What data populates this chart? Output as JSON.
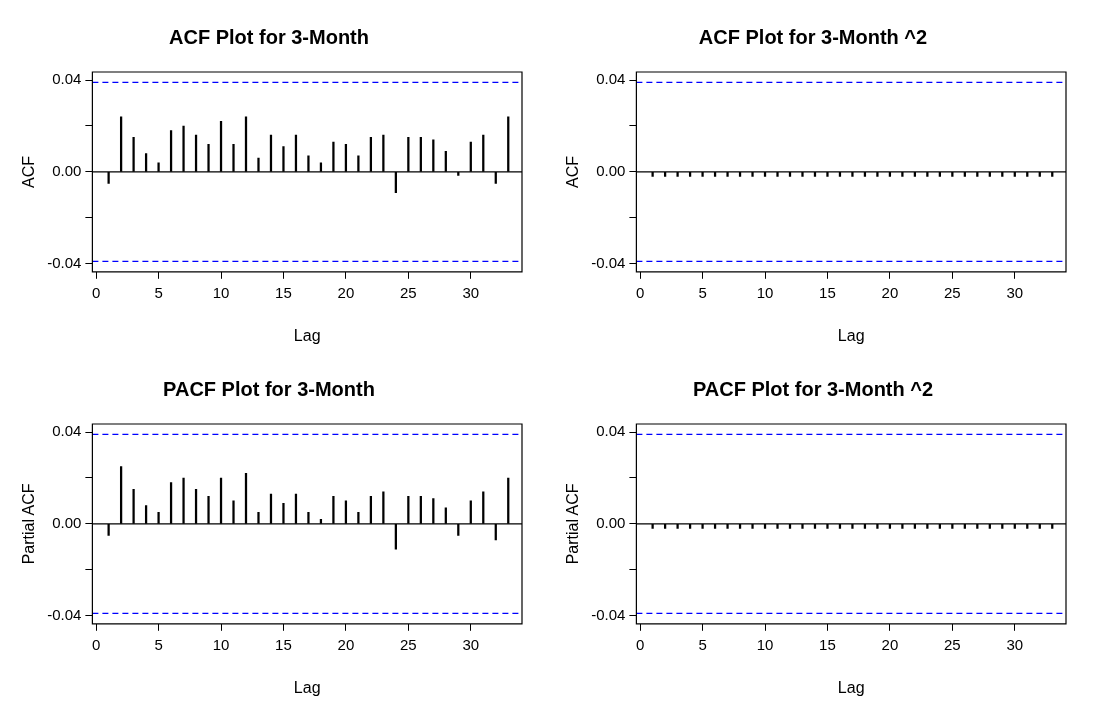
{
  "chart_data": [
    {
      "type": "bar",
      "title": "ACF Plot for 3-Month",
      "xlabel": "Lag",
      "ylabel": "ACF",
      "color": "#000000",
      "x": [
        1,
        2,
        3,
        4,
        5,
        6,
        7,
        8,
        9,
        10,
        11,
        12,
        13,
        14,
        15,
        16,
        17,
        18,
        19,
        20,
        21,
        22,
        23,
        24,
        25,
        26,
        27,
        28,
        29,
        30,
        31,
        32,
        33
      ],
      "values": [
        -0.005,
        0.024,
        0.015,
        0.008,
        0.004,
        0.018,
        0.02,
        0.016,
        0.012,
        0.022,
        0.012,
        0.024,
        0.006,
        0.016,
        0.011,
        0.016,
        0.007,
        0.004,
        0.013,
        0.012,
        0.007,
        0.015,
        0.016,
        -0.009,
        0.015,
        0.015,
        0.014,
        0.009,
        -0.0015,
        0.013,
        0.016,
        -0.005,
        0.024
      ],
      "xlim": [
        -0.3,
        34.1
      ],
      "xticks": [
        0,
        5,
        10,
        15,
        20,
        25,
        30
      ],
      "ylim": [
        -0.0435,
        0.0435
      ],
      "yticks": [
        {
          "value": -0.04,
          "label": "-0.04"
        },
        {
          "value": -0.02,
          "label": null
        },
        {
          "value": 0,
          "label": "0.00"
        },
        {
          "value": 0.02,
          "label": null
        },
        {
          "value": 0.04,
          "label": "0.04"
        }
      ],
      "ref_lines": [
        {
          "axis": "y",
          "value": 0.039,
          "color": "#0000ff",
          "line_style": "dashed"
        },
        {
          "axis": "y",
          "value": -0.039,
          "color": "#0000ff",
          "line_style": "dashed"
        },
        {
          "axis": "y",
          "value": 0,
          "color": "#000000",
          "line_style": "solid"
        }
      ]
    },
    {
      "type": "bar",
      "title": "ACF Plot for 3-Month ^2",
      "xlabel": "Lag",
      "ylabel": "ACF",
      "color": "#000000",
      "x": [
        1,
        2,
        3,
        4,
        5,
        6,
        7,
        8,
        9,
        10,
        11,
        12,
        13,
        14,
        15,
        16,
        17,
        18,
        19,
        20,
        21,
        22,
        23,
        24,
        25,
        26,
        27,
        28,
        29,
        30,
        31,
        32,
        33
      ],
      "values": [
        -0.002,
        -0.002,
        -0.002,
        -0.002,
        -0.002,
        -0.002,
        -0.002,
        -0.002,
        -0.002,
        -0.002,
        -0.002,
        -0.002,
        -0.002,
        -0.002,
        -0.002,
        -0.002,
        -0.002,
        -0.002,
        -0.002,
        -0.002,
        -0.002,
        -0.002,
        -0.002,
        -0.002,
        -0.002,
        -0.002,
        -0.002,
        -0.002,
        -0.002,
        -0.002,
        -0.002,
        -0.002,
        -0.002
      ],
      "xlim": [
        -0.3,
        34.1
      ],
      "xticks": [
        0,
        5,
        10,
        15,
        20,
        25,
        30
      ],
      "ylim": [
        -0.0435,
        0.0435
      ],
      "yticks": [
        {
          "value": -0.04,
          "label": "-0.04"
        },
        {
          "value": -0.02,
          "label": null
        },
        {
          "value": 0,
          "label": "0.00"
        },
        {
          "value": 0.02,
          "label": null
        },
        {
          "value": 0.04,
          "label": "0.04"
        }
      ],
      "ref_lines": [
        {
          "axis": "y",
          "value": 0.039,
          "color": "#0000ff",
          "line_style": "dashed"
        },
        {
          "axis": "y",
          "value": -0.039,
          "color": "#0000ff",
          "line_style": "dashed"
        },
        {
          "axis": "y",
          "value": 0,
          "color": "#000000",
          "line_style": "solid"
        }
      ]
    },
    {
      "type": "bar",
      "title": "PACF Plot for 3-Month",
      "xlabel": "Lag",
      "ylabel": "Partial ACF",
      "color": "#000000",
      "x": [
        1,
        2,
        3,
        4,
        5,
        6,
        7,
        8,
        9,
        10,
        11,
        12,
        13,
        14,
        15,
        16,
        17,
        18,
        19,
        20,
        21,
        22,
        23,
        24,
        25,
        26,
        27,
        28,
        29,
        30,
        31,
        32,
        33
      ],
      "values": [
        -0.005,
        0.025,
        0.015,
        0.008,
        0.005,
        0.018,
        0.02,
        0.015,
        0.012,
        0.02,
        0.01,
        0.022,
        0.005,
        0.013,
        0.009,
        0.013,
        0.005,
        0.002,
        0.012,
        0.01,
        0.005,
        0.012,
        0.014,
        -0.011,
        0.012,
        0.012,
        0.011,
        0.007,
        -0.005,
        0.01,
        0.014,
        -0.007,
        0.02
      ],
      "xlim": [
        -0.3,
        34.1
      ],
      "xticks": [
        0,
        5,
        10,
        15,
        20,
        25,
        30
      ],
      "ylim": [
        -0.0435,
        0.0435
      ],
      "yticks": [
        {
          "value": -0.04,
          "label": "-0.04"
        },
        {
          "value": -0.02,
          "label": null
        },
        {
          "value": 0,
          "label": "0.00"
        },
        {
          "value": 0.02,
          "label": null
        },
        {
          "value": 0.04,
          "label": "0.04"
        }
      ],
      "ref_lines": [
        {
          "axis": "y",
          "value": 0.039,
          "color": "#0000ff",
          "line_style": "dashed"
        },
        {
          "axis": "y",
          "value": -0.039,
          "color": "#0000ff",
          "line_style": "dashed"
        },
        {
          "axis": "y",
          "value": 0,
          "color": "#000000",
          "line_style": "solid"
        }
      ]
    },
    {
      "type": "bar",
      "title": "PACF Plot for 3-Month ^2",
      "xlabel": "Lag",
      "ylabel": "Partial ACF",
      "color": "#000000",
      "x": [
        1,
        2,
        3,
        4,
        5,
        6,
        7,
        8,
        9,
        10,
        11,
        12,
        13,
        14,
        15,
        16,
        17,
        18,
        19,
        20,
        21,
        22,
        23,
        24,
        25,
        26,
        27,
        28,
        29,
        30,
        31,
        32,
        33
      ],
      "values": [
        -0.002,
        -0.002,
        -0.002,
        -0.002,
        -0.002,
        -0.002,
        -0.002,
        -0.002,
        -0.002,
        -0.002,
        -0.002,
        -0.002,
        -0.002,
        -0.002,
        -0.002,
        -0.002,
        -0.002,
        -0.002,
        -0.002,
        -0.002,
        -0.002,
        -0.002,
        -0.002,
        -0.002,
        -0.002,
        -0.002,
        -0.002,
        -0.002,
        -0.002,
        -0.002,
        -0.002,
        -0.002,
        -0.002
      ],
      "xlim": [
        -0.3,
        34.1
      ],
      "xticks": [
        0,
        5,
        10,
        15,
        20,
        25,
        30
      ],
      "ylim": [
        -0.0435,
        0.0435
      ],
      "yticks": [
        {
          "value": -0.04,
          "label": "-0.04"
        },
        {
          "value": -0.02,
          "label": null
        },
        {
          "value": 0,
          "label": "0.00"
        },
        {
          "value": 0.02,
          "label": null
        },
        {
          "value": 0.04,
          "label": "0.04"
        }
      ],
      "ref_lines": [
        {
          "axis": "y",
          "value": 0.039,
          "color": "#0000ff",
          "line_style": "dashed"
        },
        {
          "axis": "y",
          "value": -0.039,
          "color": "#0000ff",
          "line_style": "dashed"
        },
        {
          "axis": "y",
          "value": 0,
          "color": "#000000",
          "line_style": "solid"
        }
      ]
    }
  ]
}
